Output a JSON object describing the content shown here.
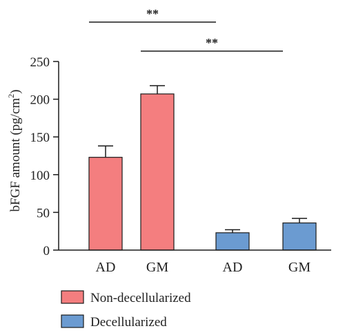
{
  "chart_data": {
    "type": "bar",
    "ylabel": "bFGF amount (pg/cm",
    "ylabel_superscript": "2",
    "ylabel_suffix": ")",
    "ylim": [
      0,
      250
    ],
    "yticks": [
      0,
      50,
      100,
      150,
      200,
      250
    ],
    "grid": false,
    "legend_position": "bottom-left",
    "series": [
      {
        "name": "Non-decellularized",
        "color": "#f47e7f",
        "bars": [
          {
            "category": "AD",
            "value": 123,
            "error": 15
          },
          {
            "category": "GM",
            "value": 207,
            "error": 11
          }
        ]
      },
      {
        "name": "Decellularized",
        "color": "#6b9bd1",
        "bars": [
          {
            "category": "AD",
            "value": 23,
            "error": 4
          },
          {
            "category": "GM",
            "value": 36,
            "error": 6
          }
        ]
      }
    ],
    "significance": [
      {
        "label": "**",
        "from": "Non-decellularized AD",
        "to": "Decellularized AD"
      },
      {
        "label": "**",
        "from": "Non-decellularized GM",
        "to": "Decellularized GM"
      }
    ]
  }
}
